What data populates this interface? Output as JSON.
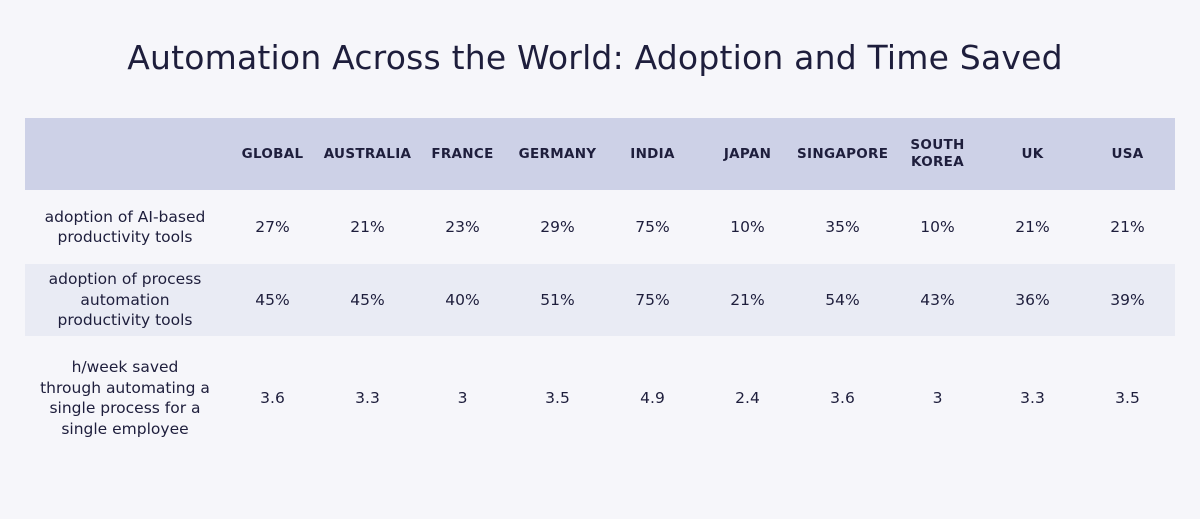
{
  "chart_data": {
    "type": "table",
    "title": "Automation Across the World: Adoption and Time Saved",
    "columns": [
      "GLOBAL",
      "AUSTRALIA",
      "FRANCE",
      "GERMANY",
      "INDIA",
      "JAPAN",
      "SINGAPORE",
      "SOUTH KOREA",
      "UK",
      "USA"
    ],
    "rows": [
      {
        "label": "adoption of AI-based productivity tools",
        "values": [
          "27%",
          "21%",
          "23%",
          "29%",
          "75%",
          "10%",
          "35%",
          "10%",
          "21%",
          "21%"
        ]
      },
      {
        "label": "adoption of process automation productivity tools",
        "values": [
          "45%",
          "45%",
          "40%",
          "51%",
          "75%",
          "21%",
          "54%",
          "43%",
          "36%",
          "39%"
        ]
      },
      {
        "label": "h/week saved through automating a single process for a single employee",
        "values": [
          "3.6",
          "3.3",
          "3",
          "3.5",
          "4.9",
          "2.4",
          "3.6",
          "3",
          "3.3",
          "3.5"
        ]
      }
    ]
  },
  "colors": {
    "background": "#f6f6fa",
    "header": "#cdd1e7",
    "stripe": "#e9ebf4",
    "text": "#1e1e3c"
  }
}
